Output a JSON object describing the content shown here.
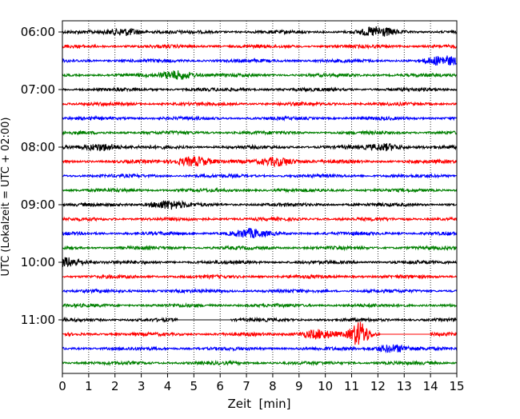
{
  "chart_data": {
    "type": "line",
    "title": "",
    "xlabel": "Zeit  [min]",
    "ylabel": "UTC (Lokalzeit = UTC + 02:00)",
    "xlim": [
      0,
      15
    ],
    "x_ticks": [
      0,
      1,
      2,
      3,
      4,
      5,
      6,
      7,
      8,
      9,
      10,
      11,
      12,
      13,
      14,
      15
    ],
    "x_tick_labels": [
      "0",
      "1",
      "2",
      "3",
      "4",
      "5",
      "6",
      "7",
      "8",
      "9",
      "10",
      "11",
      "12",
      "13",
      "14",
      "15"
    ],
    "y_tick_labels": [
      "06:00",
      "07:00",
      "08:00",
      "09:00",
      "10:00",
      "11:00"
    ],
    "trace_start_times": [
      "06:00",
      "06:15",
      "06:30",
      "06:45",
      "07:00",
      "07:15",
      "07:30",
      "07:45",
      "08:00",
      "08:15",
      "08:30",
      "08:45",
      "09:00",
      "09:15",
      "09:30",
      "09:45",
      "10:00",
      "10:15",
      "10:30",
      "10:45",
      "11:00",
      "11:15",
      "11:30",
      "11:45"
    ],
    "trace_minutes": 15,
    "grid": {
      "vertical": true,
      "style": "dotted"
    },
    "colors": [
      "#000000",
      "#ff0000",
      "#0000ff",
      "#008000"
    ],
    "gaps": [
      {
        "trace": "11:00",
        "start_min": 4.4,
        "end_min": 6.4
      },
      {
        "trace": "11:15",
        "start_min": 12.1,
        "end_min": 14.0
      }
    ],
    "events": [
      {
        "trace": "06:00",
        "min": 2.4,
        "amp": 1.3
      },
      {
        "trace": "06:00",
        "min": 12.0,
        "amp": 1.6
      },
      {
        "trace": "06:30",
        "min": 14.5,
        "amp": 1.5
      },
      {
        "trace": "06:45",
        "min": 4.4,
        "amp": 1.6
      },
      {
        "trace": "08:00",
        "min": 1.5,
        "amp": 1.3
      },
      {
        "trace": "08:00",
        "min": 12.3,
        "amp": 1.2
      },
      {
        "trace": "08:15",
        "min": 5.0,
        "amp": 1.8
      },
      {
        "trace": "08:15",
        "min": 8.2,
        "amp": 1.6
      },
      {
        "trace": "09:00",
        "min": 4.0,
        "amp": 1.5
      },
      {
        "trace": "09:30",
        "min": 7.1,
        "amp": 1.4
      },
      {
        "trace": "10:00",
        "min": 0.2,
        "amp": 1.7
      },
      {
        "trace": "11:15",
        "min": 9.7,
        "amp": 1.6
      },
      {
        "trace": "11:15",
        "min": 11.3,
        "amp": 4.5
      },
      {
        "trace": "11:30",
        "min": 12.5,
        "amp": 1.4
      }
    ]
  }
}
